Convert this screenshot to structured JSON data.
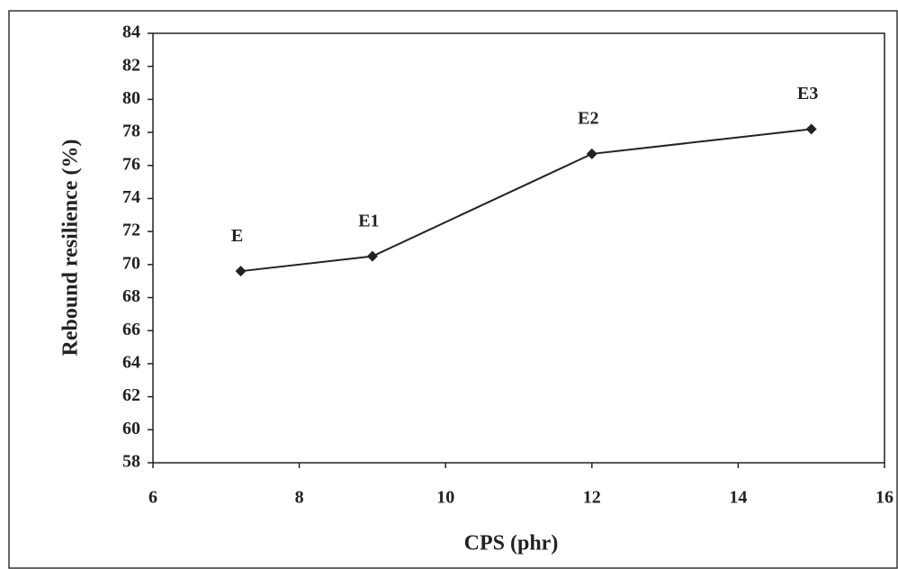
{
  "chart_data": {
    "type": "line",
    "x_label": "CPS (phr)",
    "y_label": "Rebound resilience (%)",
    "x": [
      7.2,
      9,
      12,
      15
    ],
    "values": [
      69.6,
      70.5,
      76.7,
      78.2
    ],
    "point_labels": [
      "E",
      "E1",
      "E2",
      "E3"
    ],
    "color": "#222222",
    "xlim": [
      6,
      16
    ],
    "xticks": [
      6,
      8,
      10,
      12,
      14,
      16
    ],
    "ylim": [
      58,
      84
    ],
    "yticks": [
      58,
      60,
      62,
      64,
      66,
      68,
      70,
      72,
      74,
      76,
      78,
      80,
      82,
      84
    ],
    "grid": false
  }
}
